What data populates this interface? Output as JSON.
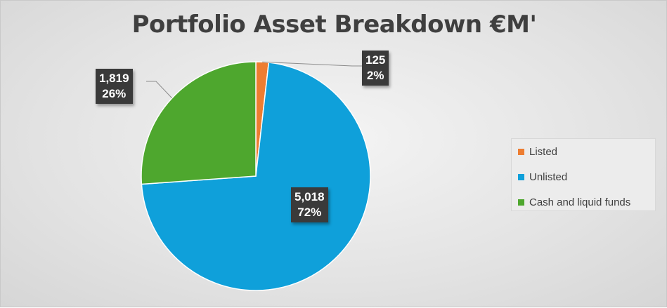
{
  "chart_data": {
    "type": "pie",
    "title": "Portfolio Asset Breakdown €M'",
    "categories": [
      "Listed",
      "Unlisted",
      "Cash and liquid funds"
    ],
    "values": [
      125,
      5018,
      1819
    ],
    "value_labels": [
      "125",
      "5,018",
      "1,819"
    ],
    "percent_labels": [
      "2%",
      "72%",
      "26%"
    ],
    "colors": [
      "#ED7D31",
      "#0FA0DA",
      "#4EA72E"
    ],
    "start_angle_deg": 0,
    "direction": "clockwise",
    "legend": "right",
    "data_label_style": "dark callout boxes"
  }
}
